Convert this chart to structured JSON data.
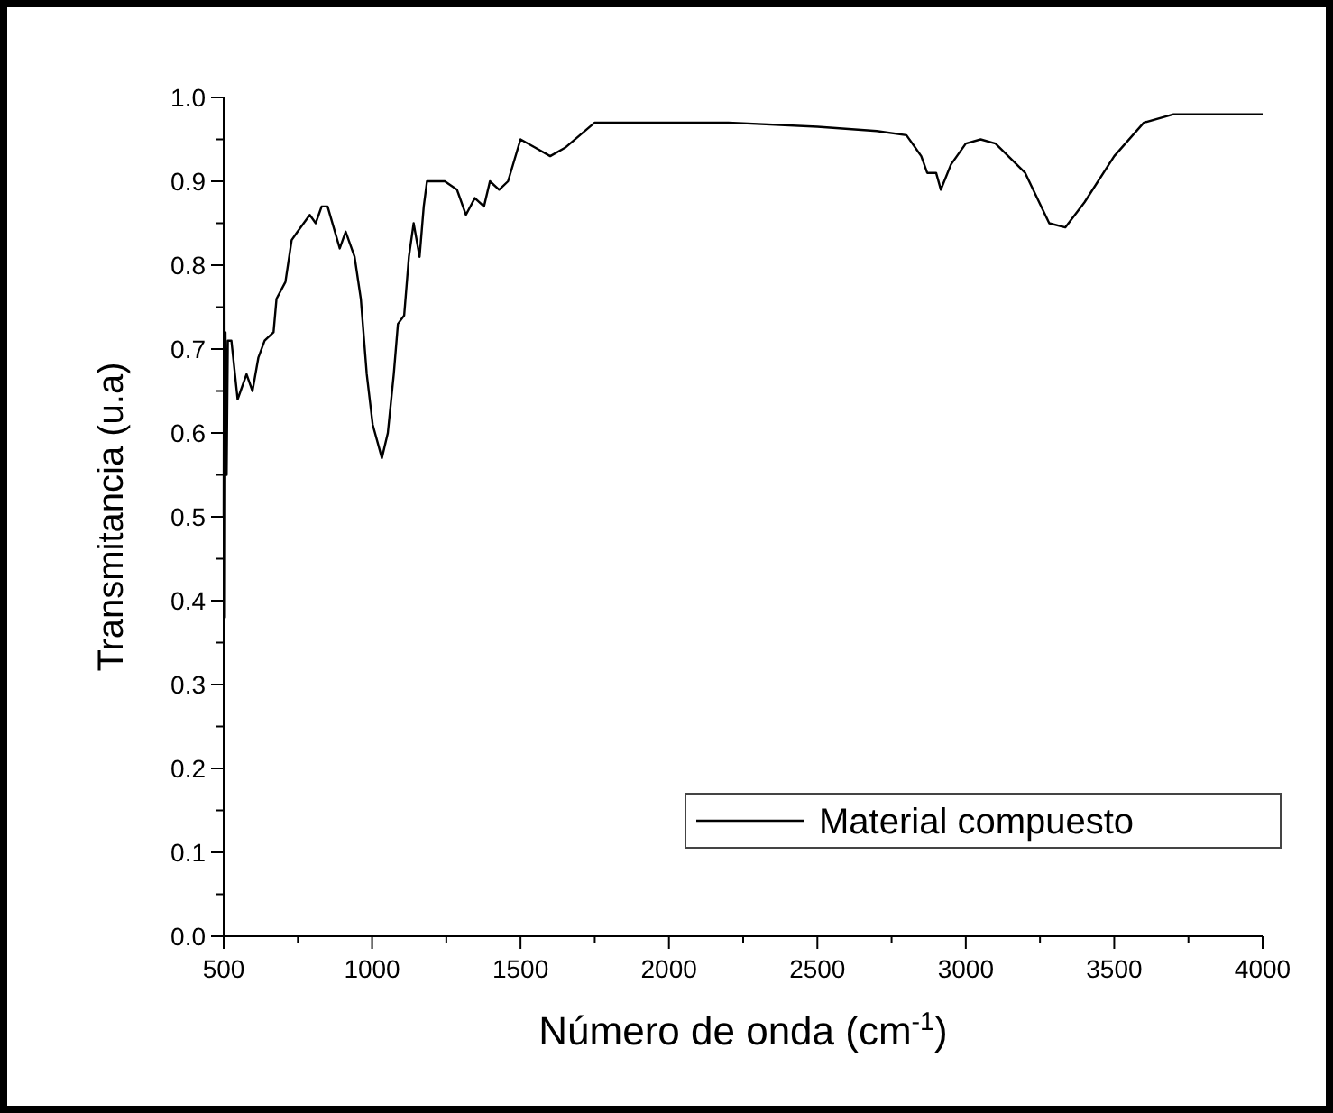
{
  "chart_data": {
    "type": "line",
    "xlabel": "Número de onda (cm$^{-1}$)",
    "ylabel": "Transmitancia (u.a)",
    "xlim": [
      500,
      4000
    ],
    "ylim": [
      0,
      1
    ],
    "xticks": [
      500,
      {
        "value": 750,
        "label": null
      },
      1000,
      {
        "value": 1250,
        "label": null
      },
      1500,
      {
        "value": 1750,
        "label": null
      },
      2000,
      {
        "value": 2250,
        "label": null
      },
      2500,
      {
        "value": 2750,
        "label": null
      },
      3000,
      {
        "value": 3250,
        "label": null
      },
      3500,
      {
        "value": 3750,
        "label": null
      },
      4000
    ],
    "yticks": [
      {
        "value": 0,
        "label": "0.0"
      },
      {
        "value": 0.05,
        "label": null
      },
      0.1,
      {
        "value": 0.15,
        "label": null
      },
      0.2,
      {
        "value": 0.25,
        "label": null
      },
      0.3,
      {
        "value": 0.35,
        "label": null
      },
      0.4,
      {
        "value": 0.45,
        "label": null
      },
      0.5,
      {
        "value": 0.55,
        "label": null
      },
      0.6,
      {
        "value": 0.65,
        "label": null
      },
      0.7,
      {
        "value": 0.75,
        "label": null
      },
      0.8,
      {
        "value": 0.85,
        "label": null
      },
      0.9,
      {
        "value": 0.95,
        "label": null
      },
      {
        "value": 1,
        "label": "1.0"
      }
    ],
    "grid": false,
    "legend": "bottom right",
    "marker": "none",
    "line_style": "solid",
    "series": [
      {
        "name": "Material compuesto",
        "color": "#000000",
        "x": [
          500,
          502,
          504,
          506,
          510,
          514,
          526,
          547,
          557,
          577,
          597,
          617,
          638,
          668,
          678,
          708,
          729,
          749,
          790,
          810,
          830,
          850,
          891,
          911,
          941,
          962,
          982,
          1002,
          1033,
          1053,
          1073,
          1087,
          1108,
          1124,
          1140,
          1160,
          1174,
          1185,
          1245,
          1286,
          1316,
          1346,
          1377,
          1397,
          1428,
          1458,
          1500,
          1550,
          1600,
          1650,
          1750,
          2000,
          2100,
          2200,
          2500,
          2700,
          2800,
          2850,
          2870,
          2900,
          2916,
          2950,
          3000,
          3050,
          3100,
          3200,
          3281,
          3335,
          3400,
          3500,
          3600,
          3700,
          4000
        ],
        "values": [
          0.5,
          0.93,
          0.38,
          0.72,
          0.55,
          0.71,
          0.71,
          0.64,
          0.65,
          0.67,
          0.65,
          0.69,
          0.71,
          0.72,
          0.76,
          0.78,
          0.83,
          0.84,
          0.86,
          0.85,
          0.87,
          0.87,
          0.82,
          0.84,
          0.81,
          0.76,
          0.67,
          0.61,
          0.57,
          0.6,
          0.67,
          0.73,
          0.74,
          0.81,
          0.85,
          0.81,
          0.87,
          0.9,
          0.9,
          0.89,
          0.86,
          0.88,
          0.87,
          0.9,
          0.89,
          0.9,
          0.95,
          0.94,
          0.93,
          0.94,
          0.97,
          0.97,
          0.97,
          0.97,
          0.965,
          0.96,
          0.955,
          0.93,
          0.91,
          0.91,
          0.89,
          0.92,
          0.945,
          0.95,
          0.945,
          0.91,
          0.85,
          0.845,
          0.875,
          0.93,
          0.97,
          0.98,
          0.98
        ]
      }
    ]
  }
}
